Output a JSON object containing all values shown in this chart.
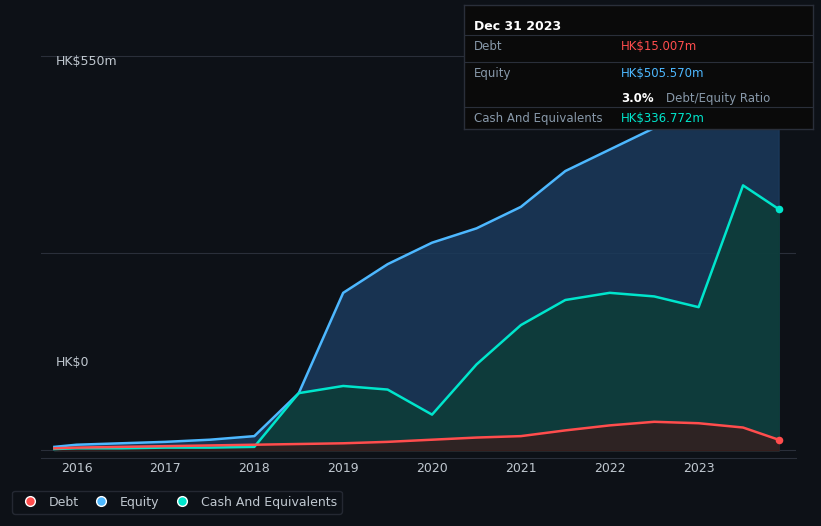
{
  "background_color": "#0d1117",
  "plot_bg_color": "#0d1117",
  "tooltip_box": {
    "title": "Dec 31 2023",
    "debt_label": "Debt",
    "debt_value": "HK$15.007m",
    "equity_label": "Equity",
    "equity_value": "HK$505.570m",
    "ratio_value": "3.0%",
    "ratio_label": "Debt/Equity Ratio",
    "cash_label": "Cash And Equivalents",
    "cash_value": "HK$336.772m"
  },
  "ylabel_top": "HK$550m",
  "ylabel_bottom": "HK$0",
  "years": [
    2015.75,
    2016.0,
    2016.5,
    2017.0,
    2017.5,
    2018.0,
    2018.5,
    2019.0,
    2019.5,
    2020.0,
    2020.5,
    2021.0,
    2021.5,
    2022.0,
    2022.5,
    2023.0,
    2023.5,
    2023.9
  ],
  "equity": [
    5,
    8,
    10,
    12,
    15,
    20,
    80,
    220,
    260,
    290,
    310,
    340,
    390,
    420,
    450,
    480,
    520,
    505
  ],
  "cash": [
    2,
    3,
    3,
    4,
    4,
    5,
    80,
    90,
    85,
    50,
    120,
    175,
    210,
    220,
    215,
    200,
    370,
    337
  ],
  "debt": [
    3,
    4,
    5,
    6,
    7,
    8,
    9,
    10,
    12,
    15,
    18,
    20,
    28,
    35,
    40,
    38,
    32,
    15
  ],
  "equity_color": "#4db8ff",
  "cash_color": "#00e5cc",
  "debt_color": "#ff4d4d",
  "equity_fill": "#1a3a5c",
  "cash_fill": "#0d3d38",
  "debt_fill": "#3d1a1a",
  "grid_color": "#2a2f3a",
  "text_color": "#c0c8d0",
  "axis_label_color": "#8899aa",
  "legend_bg": "#0d1117",
  "legend_border": "#2a2f3a",
  "xlim": [
    2015.6,
    2024.1
  ],
  "ylim": [
    -10,
    570
  ],
  "xticks": [
    2016,
    2017,
    2018,
    2019,
    2020,
    2021,
    2022,
    2023
  ],
  "hgrid_values": [
    0,
    275,
    550
  ]
}
